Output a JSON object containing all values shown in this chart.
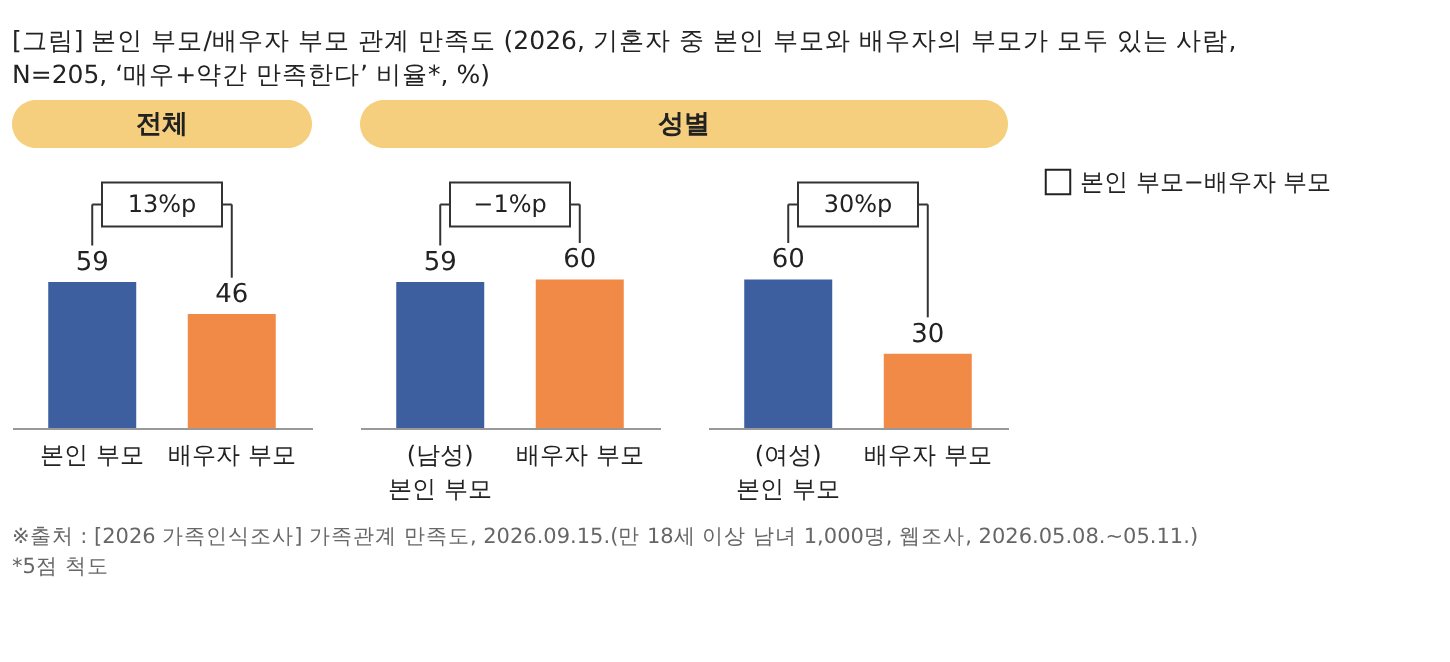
{
  "chart_data": [
    {
      "type": "bar",
      "title": "[그림] 본인 부모/배우자 부모 관계 만족도 (2026, 기혼자 중 본인 부모와 배우자의 부모가 모두 있는 사람,\n        N=205, ‘매우+약간 만족한다’ 비율*, %)",
      "subtitle": "전체",
      "categories": [
        "본인 부모",
        "배우자 부모"
      ],
      "values": [
        59,
        46
      ],
      "colors": [
        "#3d5fa0",
        "#f28a47"
      ],
      "data_labels": true,
      "annotations": [
        "13%p",
        "※출처 : [2026 가족인식조사] 가족관계 만족도, 2026.09.15.(만 18세 이상 남녀 1,000명, 웹조사, 2026.05.08.~05.11.)",
        "*5점 척도"
      ]
    },
    {
      "type": "bar",
      "subtitle": "성별",
      "categories": [
        "(남성) 본인 부모",
        "배우자 부모"
      ],
      "values": [
        59,
        60
      ],
      "colors": [
        "#3d5fa0",
        "#f28a47"
      ],
      "data_labels": true,
      "annotations": [
        "−1%p"
      ]
    },
    {
      "type": "bar",
      "categories": [
        "(여성) 본인 부모",
        "배우자 부모"
      ],
      "values": [
        60,
        30
      ],
      "colors": [
        "#3d5fa0",
        "#f28a47"
      ],
      "data_labels": true,
      "annotations": [
        "30%p"
      ],
      "legend_title": "본인 부모−배우자 부모"
    }
  ]
}
